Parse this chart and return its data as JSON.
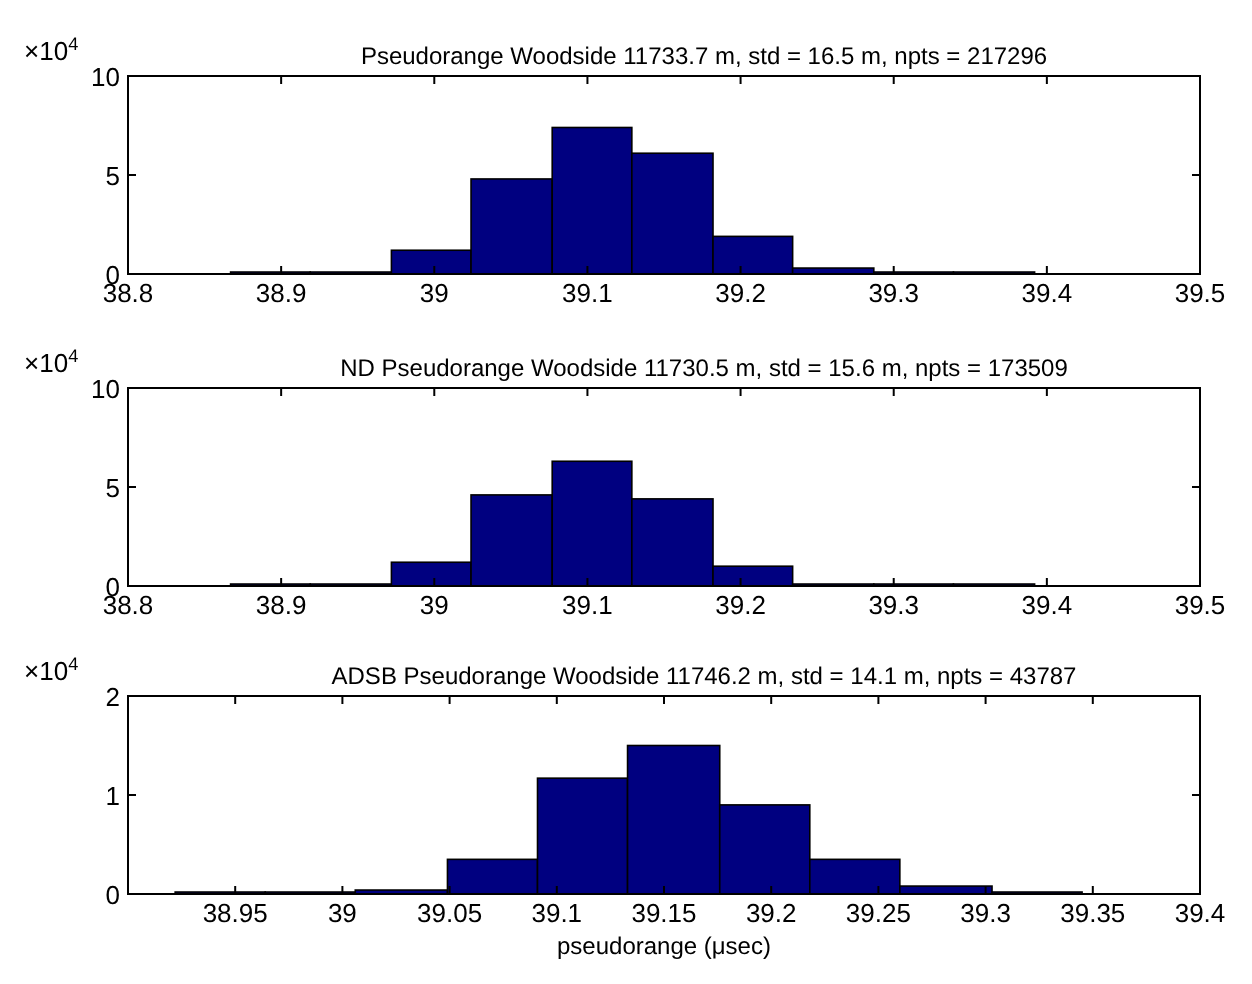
{
  "chart_data": [
    {
      "type": "histogram",
      "title": "Pseudorange Woodside 11733.7 m, std =  16.5 m, npts = 217296",
      "annotations": [
        "×10$^{4}$"
      ],
      "bins": [
        38.867,
        38.919,
        38.972,
        39.024,
        39.077,
        39.129,
        39.182,
        39.234,
        39.287,
        39.339,
        39.392
      ],
      "values": [
        0.1,
        0.1,
        1.2,
        4.8,
        7.4,
        6.1,
        1.9,
        0.3,
        0.1,
        0.1
      ],
      "color": "#000080",
      "xlim": [
        38.8,
        39.5
      ],
      "xticks": [
        38.8,
        38.9,
        39,
        39.1,
        39.2,
        39.3,
        39.4,
        39.5
      ],
      "ylim": [
        0,
        10
      ],
      "yticks": [
        0,
        5,
        10
      ]
    },
    {
      "type": "histogram",
      "title": "ND Pseudorange Woodside 11730.5 m, std =  15.6 m, npts = 173509",
      "annotations": [
        "×10$^{4}$"
      ],
      "bins": [
        38.867,
        38.919,
        38.972,
        39.024,
        39.077,
        39.129,
        39.182,
        39.234,
        39.287,
        39.339,
        39.392
      ],
      "values": [
        0.1,
        0.1,
        1.2,
        4.6,
        6.3,
        4.4,
        1.0,
        0.1,
        0.1,
        0.1
      ],
      "color": "#000080",
      "xlim": [
        38.8,
        39.5
      ],
      "xticks": [
        38.8,
        38.9,
        39,
        39.1,
        39.2,
        39.3,
        39.4,
        39.5
      ],
      "ylim": [
        0,
        10
      ],
      "yticks": [
        0,
        5,
        10
      ]
    },
    {
      "type": "histogram",
      "title": "ADSB Pseudorange Woodside 11746.2 m, std =  14.1 m, npts = 43787",
      "annotations": [
        "×10$^{4}$"
      ],
      "xlabel": "pseudorange (μsec)",
      "bins": [
        38.922,
        38.964,
        39.006,
        39.049,
        39.091,
        39.133,
        39.176,
        39.218,
        39.26,
        39.303,
        39.345
      ],
      "values": [
        0.02,
        0.02,
        0.04,
        0.35,
        1.17,
        1.5,
        0.9,
        0.35,
        0.08,
        0.02
      ],
      "color": "#000080",
      "xlim": [
        38.9,
        39.4
      ],
      "xticks": [
        38.95,
        39,
        39.05,
        39.1,
        39.15,
        39.2,
        39.25,
        39.3,
        39.35,
        39.4
      ],
      "ylim": [
        0,
        2
      ],
      "yticks": [
        0,
        1,
        2
      ]
    }
  ]
}
